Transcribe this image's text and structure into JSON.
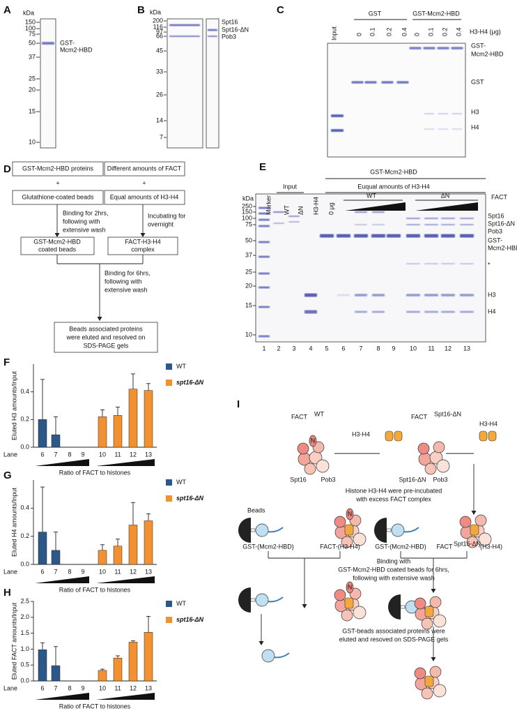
{
  "panel_labels": [
    "A",
    "B",
    "C",
    "D",
    "E",
    "F",
    "G",
    "H",
    "I"
  ],
  "gel_a": {
    "unit": "kDa",
    "markers": [
      "150",
      "100",
      "75",
      "50",
      "37",
      "25",
      "20",
      "15",
      "10"
    ],
    "band_label": [
      "GST-",
      "Mcm2-HBD"
    ]
  },
  "gel_b": {
    "unit": "kDa",
    "markers": [
      "200",
      "116",
      "97",
      "66",
      "45",
      "33",
      "26",
      "14",
      "7"
    ],
    "band_labels": [
      "Spt16",
      "Spt16-ΔN",
      "Pob3"
    ]
  },
  "gel_c": {
    "input": "Input",
    "groups": [
      "GST",
      "GST-Mcm2-HBD"
    ],
    "amounts": [
      "0",
      "0.1",
      "0.2",
      "0.4"
    ],
    "amount_label": "H3-H4 (μg)",
    "band_labels": [
      [
        "GST-",
        "Mcm2-HBD"
      ],
      [
        "GST"
      ],
      [
        "H3"
      ],
      [
        "H4"
      ]
    ]
  },
  "flow_d": {
    "box1": "GST-Mcm2-HBD proteins",
    "plus": "+",
    "box2": "Glutathione-coated beads",
    "box3": "Different amounts of FACT",
    "box4": "Equal amounts of H3-H4",
    "step1": [
      "Binding for 2hrs,",
      "following with",
      "extensive wash"
    ],
    "step2": [
      "Incubating for",
      "overnight"
    ],
    "box5": [
      "GST-Mcm2-HBD",
      "coated beads"
    ],
    "box6": [
      "FACT-H3-H4",
      "complex"
    ],
    "step3": [
      "Binding for 6hrs,",
      "following with",
      "extensive wash"
    ],
    "box7": [
      "Beads associated  proteins",
      "were eluted and resolved on",
      "SDS-PAGE gels"
    ]
  },
  "gel_e": {
    "unit": "kDa",
    "header": "GST-Mcm2-HBD",
    "input": "Input",
    "equal": "Euqual amounts of H3-H4",
    "lane_titles": [
      "Marker",
      "WT",
      "ΔN",
      "H3-H4",
      "0 μg"
    ],
    "wt": "WT",
    "dn": "ΔN",
    "fact": "FACT",
    "markers": [
      "250",
      "150",
      "100",
      "75",
      "50",
      "37",
      "25",
      "20",
      "15",
      "10"
    ],
    "band_labels": [
      [
        "Spt16"
      ],
      [
        "Spt16-ΔN"
      ],
      [
        "Pob3"
      ],
      [
        "GST-",
        "Mcm2-HBD"
      ],
      [
        "*"
      ],
      [
        "H3"
      ],
      [
        "H4"
      ]
    ],
    "lane_numbers": [
      "1",
      "2",
      "3",
      "4",
      "5",
      "6",
      "7",
      "8",
      "9",
      "10",
      "11",
      "12",
      "13"
    ]
  },
  "chart_data": [
    {
      "type": "bar",
      "y_label": "Eluted H3 amounts/Input",
      "x_label": "Ratio of FACT to histones",
      "lane_label": "Lane",
      "categories": [
        "6",
        "7",
        "8",
        "9",
        "10",
        "11",
        "12",
        "13"
      ],
      "ylim": [
        0,
        0.6
      ],
      "yticks": [
        {
          "value": 0,
          "label": "0.0"
        },
        {
          "value": 0.2,
          "label": "0.2"
        },
        {
          "value": 0.4,
          "label": "0.4"
        }
      ],
      "series": [
        {
          "name": "WT",
          "color": "#2b5789",
          "values": [
            0.2,
            0.09,
            0,
            0,
            null,
            null,
            null,
            null
          ],
          "errors": [
            0.29,
            0.13,
            0,
            0,
            null,
            null,
            null,
            null
          ]
        },
        {
          "name": "spt16-ΔN",
          "color": "#f39131",
          "values": [
            null,
            null,
            null,
            null,
            0.22,
            0.23,
            0.42,
            0.41
          ],
          "errors": [
            null,
            null,
            null,
            null,
            0.05,
            0.06,
            0.11,
            0.05
          ]
        }
      ]
    },
    {
      "type": "bar",
      "y_label": "Eluted H4 amounts/Input",
      "x_label": "Ratio of FACT to histones",
      "lane_label": "Lane",
      "categories": [
        "6",
        "7",
        "8",
        "9",
        "10",
        "11",
        "12",
        "13"
      ],
      "ylim": [
        0,
        0.6
      ],
      "yticks": [
        {
          "value": 0,
          "label": "0.0"
        },
        {
          "value": 0.2,
          "label": "0.2"
        },
        {
          "value": 0.4,
          "label": "0.4"
        }
      ],
      "series": [
        {
          "name": "WT",
          "color": "#2b5789",
          "values": [
            0.23,
            0.1,
            0,
            0,
            null,
            null,
            null,
            null
          ],
          "errors": [
            0.32,
            0.13,
            0,
            0,
            null,
            null,
            null,
            null
          ]
        },
        {
          "name": "spt16-ΔN",
          "color": "#f39131",
          "values": [
            null,
            null,
            null,
            null,
            0.1,
            0.13,
            0.28,
            0.31
          ],
          "errors": [
            null,
            null,
            null,
            null,
            0.04,
            0.05,
            0.16,
            0.05
          ]
        }
      ]
    },
    {
      "type": "bar",
      "y_label": "Eluted FACT amounts/Input",
      "x_label": "Ratio of FACT to histones",
      "lane_label": "Lane",
      "categories": [
        "6",
        "7",
        "8",
        "9",
        "10",
        "11",
        "12",
        "13"
      ],
      "ylim": [
        0,
        2.5
      ],
      "yticks": [
        {
          "value": 0,
          "label": "0.0"
        },
        {
          "value": 0.5,
          "label": "0.5"
        },
        {
          "value": 1,
          "label": "1.0"
        },
        {
          "value": 1.5,
          "label": "1.5"
        },
        {
          "value": 2,
          "label": "2.0"
        },
        {
          "value": 2.5,
          "label": "2.5"
        }
      ],
      "series": [
        {
          "name": "WT",
          "color": "#2b5789",
          "values": [
            0.98,
            0.48,
            0,
            0,
            null,
            null,
            null,
            null
          ],
          "errors": [
            0.22,
            0.6,
            0,
            0,
            null,
            null,
            null,
            null
          ]
        },
        {
          "name": "spt16-ΔN",
          "color": "#f39131",
          "values": [
            null,
            null,
            null,
            null,
            0.33,
            0.72,
            1.22,
            1.53
          ],
          "errors": [
            null,
            null,
            null,
            null,
            0.04,
            0.07,
            0.04,
            0.5
          ]
        }
      ]
    }
  ],
  "diagram_i": {
    "fact": "FACT",
    "wt": "WT",
    "dn": "Spt16-ΔN",
    "h3h4": "H3-H4",
    "n": "N",
    "spt16": "Spt16",
    "pob3": "Pob3",
    "pre": [
      "Histone H3-H4 were pre-incubated",
      "with excess FACT complex"
    ],
    "beads": "Beads",
    "gst": "GST-(Mcm2-HBD)",
    "fact_h": "FACT-(H3-H4)",
    "suffix": "-(H3-H4)",
    "binding": [
      "Binding with",
      "GST-Mcm2-HBD coated beads for 6hrs,",
      "following with extensive wash"
    ],
    "eluted": [
      "GST-beads associated proteins were",
      "eluted and resoved on SDS-PAGE gels"
    ]
  }
}
